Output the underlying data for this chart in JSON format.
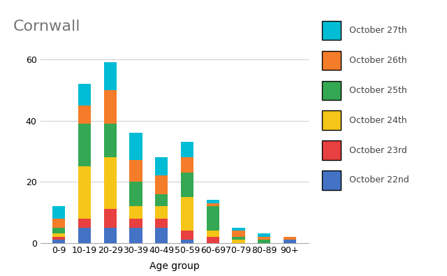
{
  "categories": [
    "0-9",
    "10-19",
    "20-29",
    "30-39",
    "40-49",
    "50-59",
    "60-69",
    "70-79",
    "80-89",
    "90+"
  ],
  "series": {
    "October 22nd": [
      1,
      5,
      5,
      5,
      5,
      1,
      0,
      0,
      0,
      1
    ],
    "October 23rd": [
      1,
      3,
      6,
      3,
      3,
      3,
      2,
      0,
      0,
      0
    ],
    "October 24th": [
      1,
      17,
      17,
      4,
      4,
      11,
      2,
      1,
      0,
      0
    ],
    "October 25th": [
      2,
      14,
      11,
      8,
      4,
      8,
      8,
      1,
      1,
      0
    ],
    "October 26th": [
      3,
      6,
      11,
      7,
      6,
      5,
      1,
      2,
      1,
      1
    ],
    "October 27th": [
      4,
      7,
      9,
      9,
      6,
      5,
      1,
      1,
      1,
      0
    ]
  },
  "colors": {
    "October 22nd": "#4472c4",
    "October 23rd": "#e84040",
    "October 24th": "#f5c518",
    "October 25th": "#34a853",
    "October 26th": "#f57c28",
    "October 27th": "#00bcd4"
  },
  "title": "Cornwall",
  "xlabel": "Age group",
  "ylim": [
    0,
    65
  ],
  "yticks": [
    0,
    20,
    40,
    60
  ],
  "background_color": "#ffffff",
  "title_fontsize": 16,
  "title_color": "#757575",
  "axis_label_fontsize": 10,
  "tick_fontsize": 9,
  "legend_fontsize": 9,
  "bar_width": 0.5
}
